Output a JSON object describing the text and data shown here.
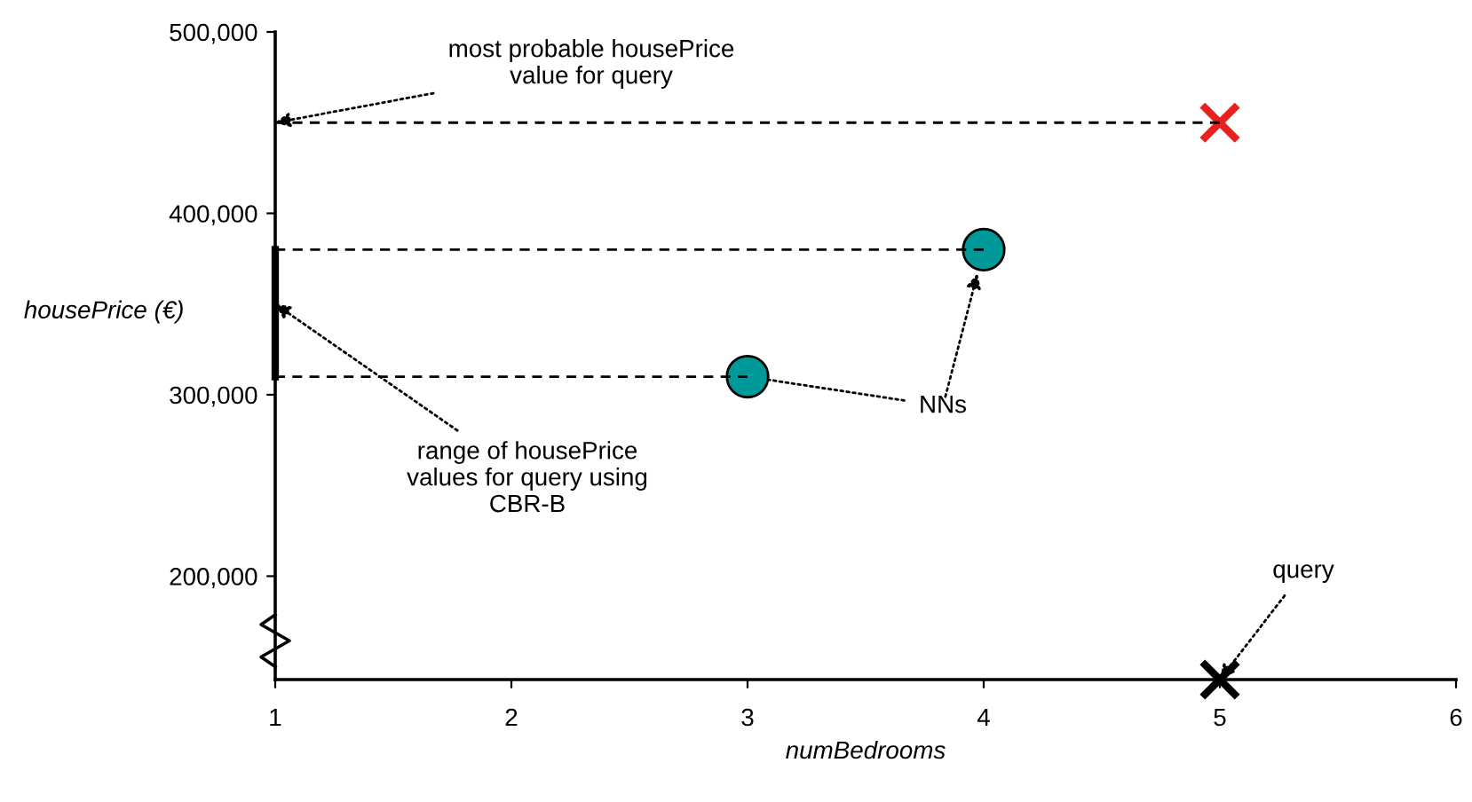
{
  "chart_data": {
    "type": "scatter",
    "xlabel": "numBedrooms",
    "ylabel": "housePrice (€)",
    "xlim": [
      1,
      6
    ],
    "xticks": [
      1,
      2,
      3,
      4,
      5,
      6
    ],
    "ylim": [
      143000,
      500000
    ],
    "yticks": [
      {
        "value": 200000,
        "label": "200,000"
      },
      {
        "value": 300000,
        "label": "300,000"
      },
      {
        "value": 400000,
        "label": "400,000"
      },
      {
        "value": 500000,
        "label": "500,000"
      }
    ],
    "grid": false,
    "legend": false,
    "series": [
      {
        "type": "line",
        "x": [
          1,
          5
        ],
        "values": [
          450000,
          450000
        ],
        "color": "#000000",
        "line_style": "dashed"
      },
      {
        "type": "line",
        "x": [
          1,
          4
        ],
        "values": [
          380000,
          380000
        ],
        "color": "#000000",
        "line_style": "dashed"
      },
      {
        "type": "line",
        "x": [
          1,
          3
        ],
        "values": [
          310000,
          310000
        ],
        "color": "#000000",
        "line_style": "dashed"
      },
      {
        "type": "line",
        "x": [
          1,
          1
        ],
        "values": [
          310000,
          380000
        ],
        "color": "#000000",
        "line_style": "solid"
      },
      {
        "x": [
          3,
          4
        ],
        "values": [
          310000,
          380000
        ],
        "color": "#009999",
        "marker": "circle"
      },
      {
        "x": [
          5
        ],
        "values": [
          450000
        ],
        "color": "#e8201e",
        "marker": "cross"
      },
      {
        "x": [
          5
        ],
        "values": [
          143000
        ],
        "color": "#000000",
        "marker": "cross"
      }
    ],
    "annotations": [
      {
        "text": "most probable housePrice\nvalue for query",
        "x": 1,
        "y": 450000
      },
      {
        "text": "range of housePrice\nvalues for query using\nCBR-B",
        "x": 1,
        "y": 350000
      },
      {
        "text": "NNs",
        "x": 3,
        "y": 310000
      },
      {
        "text": "query",
        "x": 5,
        "y": 143000
      }
    ]
  }
}
